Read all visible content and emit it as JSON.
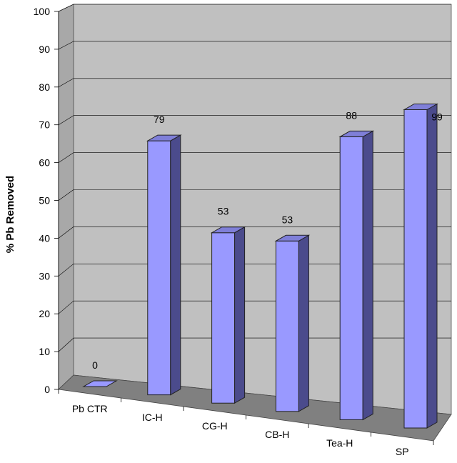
{
  "chart_data": {
    "type": "bar",
    "categories": [
      "Pb CTR",
      "IC-H",
      "CG-H",
      "CB-H",
      "Tea-H",
      "SP"
    ],
    "values": [
      0,
      79,
      53,
      53,
      88,
      99
    ],
    "data_labels": [
      "0",
      "79",
      "53",
      "53",
      "88",
      "99"
    ],
    "ylabel": "% Pb Removed",
    "ylim": [
      0,
      100
    ],
    "yticks": [
      "0",
      "10",
      "20",
      "30",
      "40",
      "50",
      "60",
      "70",
      "80",
      "90",
      "100"
    ],
    "grid": true,
    "three_d": true,
    "colors": {
      "bar_front": "#9999ff",
      "bar_side": "#4b4b8c",
      "bar_top": "#7f7fd8",
      "back_wall": "#c0c0c0",
      "side_wall": "#a8a8a8",
      "floor": "#808080",
      "grid": "#000000"
    }
  }
}
